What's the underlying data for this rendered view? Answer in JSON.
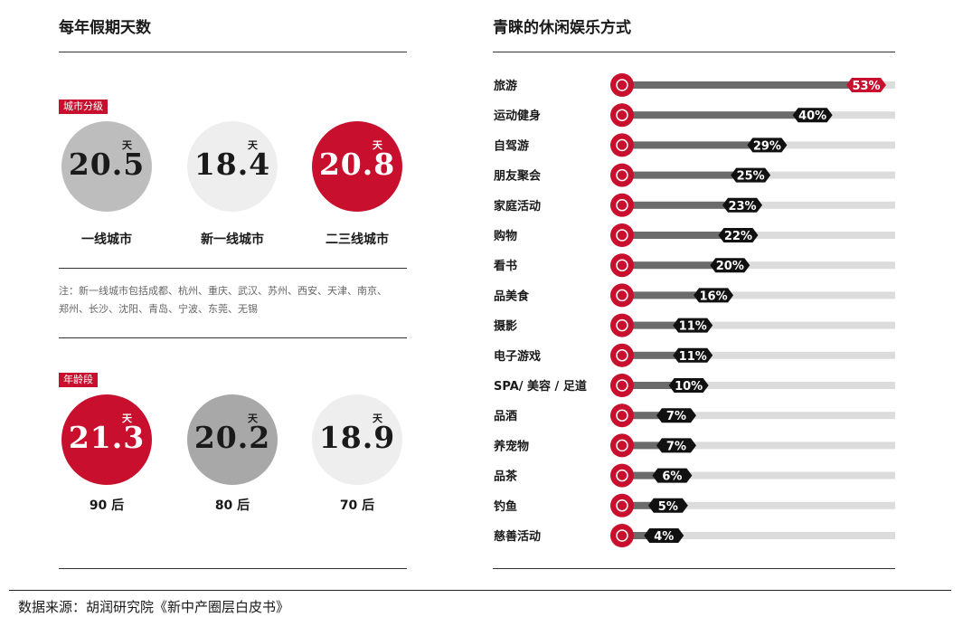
{
  "left_panel": {
    "title": "每年假期天数",
    "unit": "天",
    "city_tag": "城市分级",
    "city_circles": [
      {
        "value": "20.5",
        "label": "一线城市",
        "color": "#bdbdbd",
        "text_color": "#1a1a1a"
      },
      {
        "value": "18.4",
        "label": "新一线城市",
        "color": "#eeeeee",
        "text_color": "#1a1a1a"
      },
      {
        "value": "20.8",
        "label": "二三线城市",
        "color": "#c8102e",
        "text_color": "#ffffff"
      }
    ],
    "note_line1": "注：新一线城市包括成都、杭州、重庆、武汉、苏州、西安、天津、南京、",
    "note_line2": "郑州、长沙、沈阳、青岛、宁波、东莞、无锡",
    "age_tag": "年龄段",
    "age_circles": [
      {
        "value": "21.3",
        "label": "90 后",
        "color": "#c8102e",
        "text_color": "#ffffff"
      },
      {
        "value": "20.2",
        "label": "80 后",
        "color": "#a8a8a8",
        "text_color": "#1a1a1a"
      },
      {
        "value": "18.9",
        "label": "70 后",
        "color": "#eeeeee",
        "text_color": "#1a1a1a"
      }
    ]
  },
  "chart_data": {
    "type": "bar",
    "title": "青睐的休闲娱乐方式",
    "categories": [
      "旅游",
      "运动健身",
      "自驾游",
      "朋友聚会",
      "家庭活动",
      "购物",
      "看书",
      "品美食",
      "摄影",
      "电子游戏",
      "SPA/ 美容 / 足道",
      "品酒",
      "养宠物",
      "品茶",
      "钓鱼",
      "慈善活动"
    ],
    "values": [
      53,
      40,
      29,
      25,
      23,
      22,
      20,
      16,
      11,
      11,
      10,
      7,
      7,
      6,
      5,
      4
    ],
    "value_labels": [
      "53%",
      "40%",
      "29%",
      "25%",
      "23%",
      "22%",
      "20%",
      "16%",
      "11%",
      "11%",
      "10%",
      "7%",
      "7%",
      "6%",
      "5%",
      "4%"
    ],
    "xlim": [
      0,
      53
    ],
    "colors": {
      "accent": "#c8102e",
      "bar": "#6b6b6b",
      "track": "#dcdcdc",
      "badge": "#111111"
    },
    "icons": [
      "suitcase-icon",
      "racket-icon",
      "car-icon",
      "cheers-icon",
      "family-icon",
      "shopping-bag-icon",
      "book-icon",
      "cutlery-icon",
      "camera-icon",
      "gamepad-icon",
      "spa-icon",
      "wine-icon",
      "pet-icon",
      "teapot-icon",
      "fish-icon",
      "heart-icon"
    ]
  },
  "footer": {
    "source": "数据来源：胡润研究院《新中产圈层白皮书》"
  }
}
